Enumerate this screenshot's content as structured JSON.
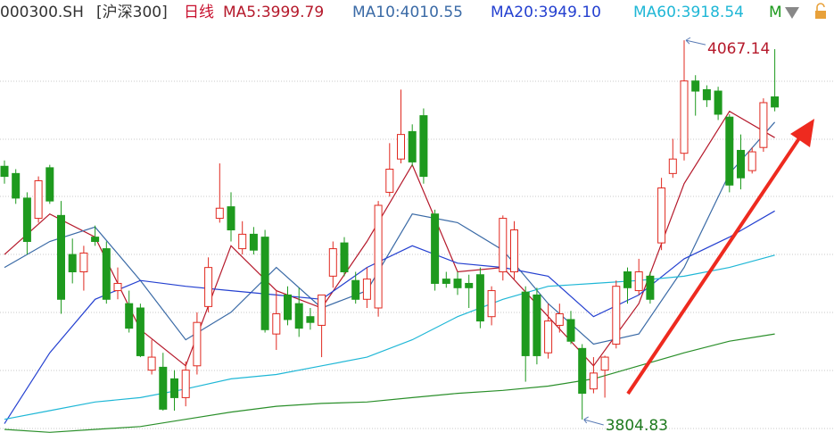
{
  "chart_data": {
    "type": "candlestick",
    "code": "000300.SH",
    "name": "[沪深300]",
    "period": "日线",
    "menu": "M",
    "ylim": [
      3790,
      4095
    ],
    "up_color": "#e0281f",
    "down_color": "#1e9a1e",
    "candles": [
      [
        3980,
        3984,
        3968,
        3973
      ],
      [
        3975,
        3978,
        3954,
        3958
      ],
      [
        3958,
        3962,
        3919,
        3928
      ],
      [
        3944,
        3973,
        3941,
        3970
      ],
      [
        3979,
        3981,
        3954,
        3956
      ],
      [
        3946,
        3956,
        3878,
        3888
      ],
      [
        3919,
        3930,
        3899,
        3907
      ],
      [
        3907,
        3925,
        3894,
        3920
      ],
      [
        3931,
        3939,
        3925,
        3928
      ],
      [
        3923,
        3928,
        3885,
        3888
      ],
      [
        3894,
        3910,
        3888,
        3899
      ],
      [
        3885,
        3894,
        3865,
        3868
      ],
      [
        3882,
        3885,
        3848,
        3849
      ],
      [
        3839,
        3860,
        3836,
        3848
      ],
      [
        3841,
        3851,
        3811,
        3812
      ],
      [
        3833,
        3839,
        3811,
        3820
      ],
      [
        3820,
        3845,
        3814,
        3839
      ],
      [
        3842,
        3879,
        3836,
        3872
      ],
      [
        3883,
        3917,
        3879,
        3910
      ],
      [
        3944,
        3982,
        3941,
        3951
      ],
      [
        3952,
        3962,
        3928,
        3936
      ],
      [
        3923,
        3942,
        3919,
        3933
      ],
      [
        3933,
        3938,
        3919,
        3922
      ],
      [
        3931,
        3936,
        3865,
        3867
      ],
      [
        3864,
        3894,
        3853,
        3878
      ],
      [
        3891,
        3897,
        3870,
        3874
      ],
      [
        3885,
        3896,
        3862,
        3868
      ],
      [
        3876,
        3882,
        3867,
        3872
      ],
      [
        3870,
        3891,
        3848,
        3891
      ],
      [
        3904,
        3928,
        3896,
        3923
      ],
      [
        3927,
        3931,
        3904,
        3907
      ],
      [
        3901,
        3907,
        3885,
        3888
      ],
      [
        3888,
        3910,
        3882,
        3902
      ],
      [
        3882,
        3956,
        3876,
        3953
      ],
      [
        3962,
        3996,
        3959,
        3978
      ],
      [
        3985,
        4033,
        3982,
        4002
      ],
      [
        4004,
        4009,
        3980,
        3983
      ],
      [
        4015,
        4020,
        3968,
        3973
      ],
      [
        3947,
        3950,
        3894,
        3899
      ],
      [
        3902,
        3907,
        3896,
        3899
      ],
      [
        3902,
        3907,
        3891,
        3896
      ],
      [
        3899,
        3905,
        3882,
        3896
      ],
      [
        3905,
        3910,
        3868,
        3873
      ],
      [
        3876,
        3897,
        3870,
        3894
      ],
      [
        3907,
        3946,
        3901,
        3944
      ],
      [
        3907,
        3942,
        3902,
        3936
      ],
      [
        3893,
        3897,
        3831,
        3849
      ],
      [
        3891,
        3896,
        3843,
        3849
      ],
      [
        3851,
        3885,
        3847,
        3873
      ],
      [
        3870,
        3885,
        3865,
        3878
      ],
      [
        3874,
        3880,
        3857,
        3859
      ],
      [
        3854,
        3857,
        3804.83,
        3823
      ],
      [
        3826,
        3848,
        3823,
        3837
      ],
      [
        3839,
        3849,
        3820,
        3848
      ],
      [
        3857,
        3901,
        3854,
        3897
      ],
      [
        3907,
        3910,
        3885,
        3896
      ],
      [
        3894,
        3916,
        3891,
        3907
      ],
      [
        3904,
        3907,
        3885,
        3888
      ],
      [
        3927,
        3972,
        3922,
        3965
      ],
      [
        3975,
        3999,
        3972,
        3985
      ],
      [
        3989,
        4067.14,
        3984,
        4039
      ],
      [
        4039,
        4043,
        4015,
        4032
      ],
      [
        4033,
        4036,
        4021,
        4026
      ],
      [
        4032,
        4035,
        4012,
        4016
      ],
      [
        4014,
        4016,
        3962,
        3967
      ],
      [
        3991,
        4002,
        3964,
        3972
      ],
      [
        3977,
        3993,
        3975,
        3990
      ],
      [
        3993,
        4027,
        3990,
        4024
      ],
      [
        4028,
        4061,
        4018,
        4021
      ]
    ],
    "series": [
      {
        "name": "MA5:3999.79",
        "color": "#b5192b",
        "x": [
          0,
          4,
          8,
          12,
          16,
          20,
          24,
          28,
          32,
          36,
          40,
          44,
          48,
          52,
          56,
          60,
          64,
          68
        ],
        "values": [
          3919,
          3947,
          3931,
          3867,
          3842,
          3925,
          3894,
          3882,
          3928,
          3981,
          3907,
          3910,
          3876,
          3842,
          3885,
          3968,
          4018,
          3999.79
        ]
      },
      {
        "name": "MA10:4010.55",
        "color": "#3a6aa6",
        "x": [
          0,
          4,
          8,
          12,
          16,
          20,
          24,
          28,
          32,
          36,
          40,
          44,
          48,
          52,
          56,
          60,
          64,
          68
        ],
        "values": [
          3910,
          3928,
          3938,
          3901,
          3860,
          3879,
          3910,
          3882,
          3894,
          3947,
          3941,
          3922,
          3885,
          3857,
          3864,
          3910,
          3975,
          4010.55
        ]
      },
      {
        "name": "MA20:3949.10",
        "color": "#2440d0",
        "x": [
          0,
          4,
          8,
          12,
          16,
          20,
          24,
          28,
          32,
          36,
          40,
          44,
          48,
          52,
          56,
          60,
          64,
          68
        ],
        "values": [
          3802,
          3851,
          3888,
          3901,
          3897,
          3894,
          3891,
          3888,
          3910,
          3925,
          3913,
          3910,
          3904,
          3876,
          3891,
          3916,
          3931,
          3949.1
        ]
      },
      {
        "name": "MA60:3918.54",
        "color": "#1fb7d6",
        "x": [
          0,
          4,
          8,
          12,
          16,
          20,
          24,
          28,
          32,
          36,
          40,
          44,
          48,
          52,
          56,
          60,
          64,
          68
        ],
        "values": [
          3805,
          3811,
          3817,
          3820,
          3826,
          3833,
          3836,
          3842,
          3848,
          3860,
          3876,
          3888,
          3897,
          3899,
          3901,
          3904,
          3910,
          3918.54
        ]
      },
      {
        "color": "#2a8f2a",
        "x": [
          0,
          4,
          8,
          12,
          16,
          20,
          24,
          28,
          32,
          36,
          40,
          44,
          48,
          52,
          56,
          60,
          64,
          68
        ],
        "values": [
          3798,
          3796,
          3798,
          3800,
          3805,
          3810,
          3814,
          3816,
          3817,
          3820,
          3823,
          3825,
          3828,
          3833,
          3842,
          3851,
          3859,
          3864
        ]
      }
    ]
  }
}
